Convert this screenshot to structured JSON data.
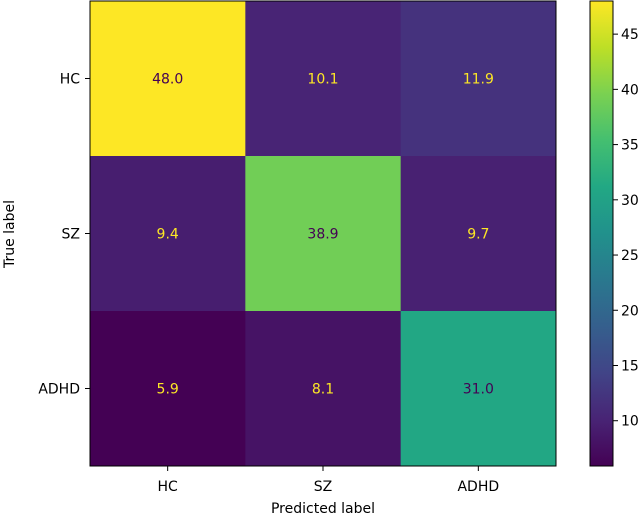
{
  "chart_data": {
    "type": "heatmap",
    "title": "",
    "xlabel": "Predicted label",
    "ylabel": "True label",
    "x_categories": [
      "HC",
      "SZ",
      "ADHD"
    ],
    "y_categories": [
      "HC",
      "SZ",
      "ADHD"
    ],
    "values": [
      [
        48.0,
        10.1,
        11.9
      ],
      [
        9.4,
        38.9,
        9.7
      ],
      [
        5.9,
        8.1,
        31.0
      ]
    ],
    "value_labels": [
      [
        "48.0",
        "10.1",
        "11.9"
      ],
      [
        "9.4",
        "38.9",
        "9.7"
      ],
      [
        "5.9",
        "8.1",
        "31.0"
      ]
    ],
    "colormap": "viridis",
    "colorbar": {
      "vmin": 5.9,
      "vmax": 48.0,
      "ticks": [
        10,
        15,
        20,
        25,
        30,
        35,
        40,
        45
      ],
      "tick_labels": [
        "10",
        "15",
        "20",
        "25",
        "30",
        "35",
        "40",
        "45"
      ]
    },
    "text_color_dark": "#440154",
    "text_color_light": "#fde725",
    "grid": false
  }
}
